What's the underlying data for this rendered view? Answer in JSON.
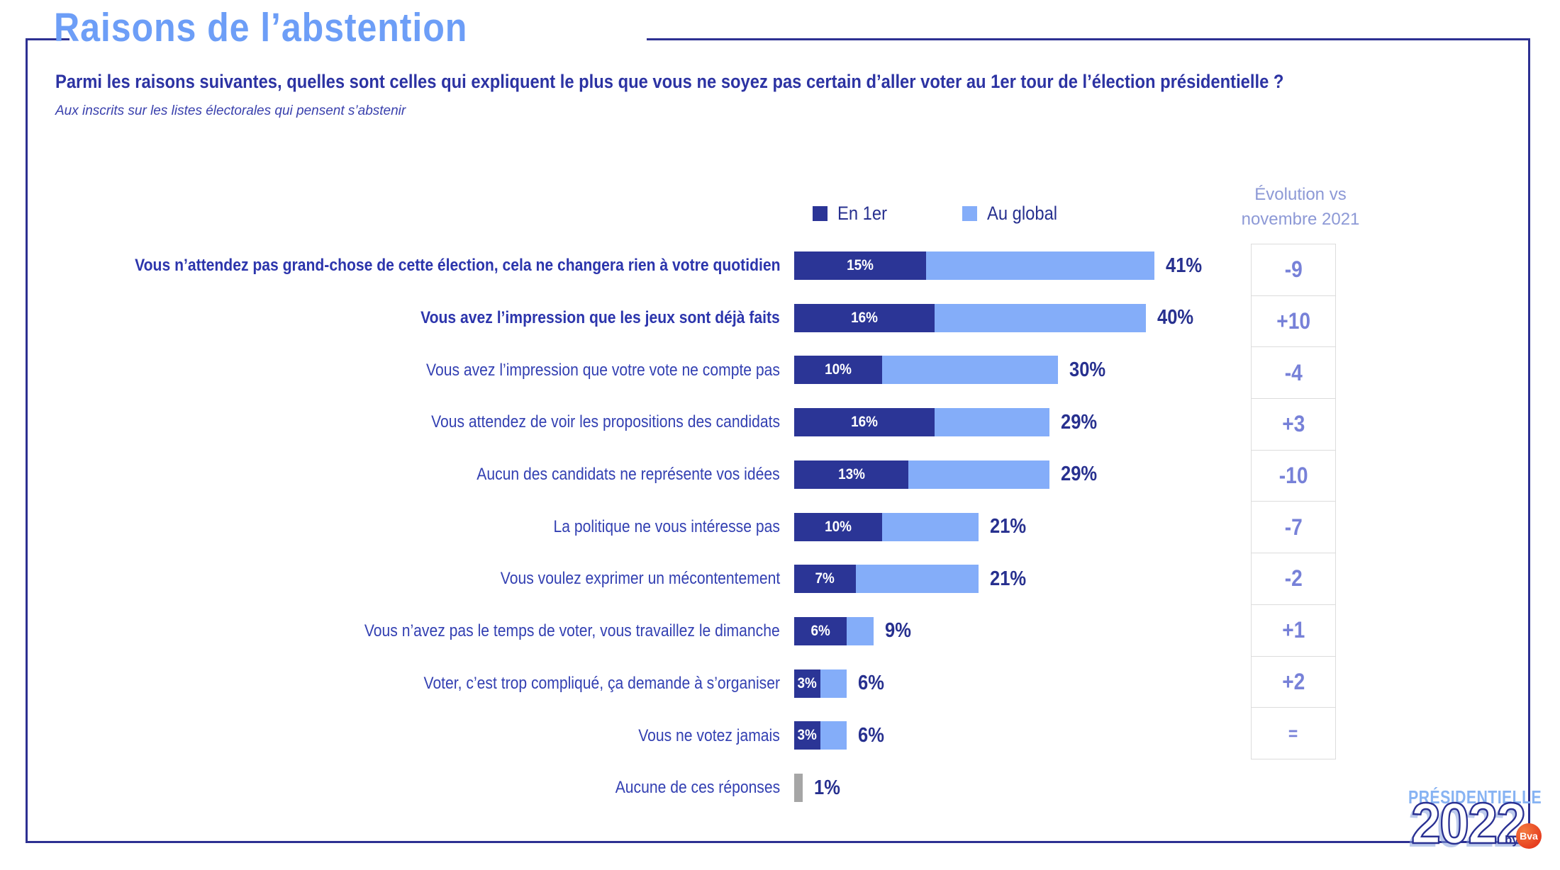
{
  "page": {
    "title": "Raisons de l’abstention",
    "question": "Parmi les raisons suivantes, quelles sont celles qui expliquent le plus que vous ne soyez pas certain d’aller voter au 1er tour de l’élection présidentielle ?",
    "subtitle": "Aux inscrits sur les listes électorales qui pensent s’abstenir"
  },
  "legend": {
    "first_label": "En 1er",
    "global_label": "Au global"
  },
  "evolution_header": {
    "line1": "Évolution  vs",
    "line2": "novembre 2021"
  },
  "colors": {
    "dark_blue": "#2b3596",
    "light_blue": "#84adf9",
    "gray_bar": "#a6a6a6",
    "label_blue": "#3340b2",
    "total_blue": "#27308f",
    "evolution_text": "#7781d8",
    "frame": "#2d3092",
    "title_blue": "#6d9ef7",
    "badge_red": "#e63c1e"
  },
  "chart_data": {
    "type": "bar",
    "orientation": "horizontal-stacked",
    "unit": "%",
    "series": [
      {
        "name": "En 1er",
        "color": "#2b3596"
      },
      {
        "name": "Au global",
        "color": "#84adf9"
      }
    ],
    "x_range": [
      0,
      41
    ],
    "legend_position": "top",
    "grid": false,
    "rows": [
      {
        "label": "Vous n’attendez pas grand-chose de cette élection, cela ne changera rien à votre quotidien",
        "bold": true,
        "en_1er": 15,
        "au_global": 41,
        "evolution": "-9"
      },
      {
        "label": "Vous avez l’impression que les jeux sont déjà faits",
        "bold": true,
        "en_1er": 16,
        "au_global": 40,
        "evolution": "+10"
      },
      {
        "label": "Vous avez l’impression que votre vote ne compte pas",
        "bold": false,
        "en_1er": 10,
        "au_global": 30,
        "evolution": "-4"
      },
      {
        "label": "Vous attendez de voir les propositions des candidats",
        "bold": false,
        "en_1er": 16,
        "au_global": 29,
        "evolution": "+3"
      },
      {
        "label": "Aucun des candidats ne représente vos idées",
        "bold": false,
        "en_1er": 13,
        "au_global": 29,
        "evolution": "-10"
      },
      {
        "label": "La politique ne vous intéresse pas",
        "bold": false,
        "en_1er": 10,
        "au_global": 21,
        "evolution": "-7"
      },
      {
        "label": "Vous voulez exprimer un mécontentement",
        "bold": false,
        "en_1er": 7,
        "au_global": 21,
        "evolution": "-2"
      },
      {
        "label": "Vous n’avez pas le temps de voter, vous travaillez le dimanche",
        "bold": false,
        "en_1er": 6,
        "au_global": 9,
        "evolution": "+1"
      },
      {
        "label": "Voter, c’est trop compliqué, ça demande à s’organiser",
        "bold": false,
        "en_1er": 3,
        "au_global": 6,
        "evolution": "+2"
      },
      {
        "label": "Vous ne votez jamais",
        "bold": false,
        "en_1er": 3,
        "au_global": 6,
        "evolution": "="
      },
      {
        "label": "Aucune de ces réponses",
        "bold": false,
        "en_1er": null,
        "au_global": 1,
        "gray": true,
        "evolution": null
      }
    ]
  },
  "logo": {
    "line1": "PRÉSIDENTIELLE",
    "year": "2022",
    "by": "by",
    "badge": "Bva"
  }
}
